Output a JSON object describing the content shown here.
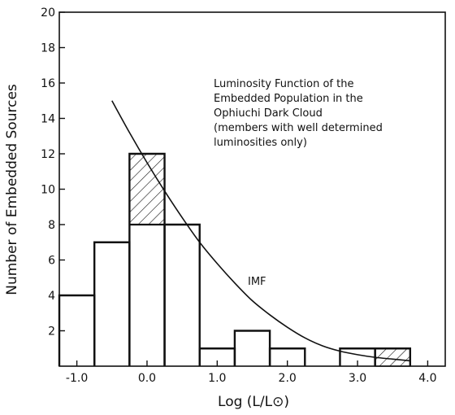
{
  "chart_data": {
    "type": "bar",
    "subtype": "histogram",
    "title": "",
    "xlabel": "Log (L/L⊙)",
    "ylabel": "Number of Embedded Sources",
    "xlim": [
      -1.25,
      4.25
    ],
    "ylim": [
      0,
      20
    ],
    "xticks": [
      -1.0,
      0.0,
      1.0,
      2.0,
      3.0,
      4.0
    ],
    "xtick_labels": [
      "-1.0",
      "0.0",
      "1.0",
      "2.0",
      "3.0",
      "4.0"
    ],
    "yticks": [
      2,
      4,
      6,
      8,
      10,
      12,
      14,
      16,
      18,
      20
    ],
    "ytick_labels": [
      "2",
      "4",
      "6",
      "8",
      "10",
      "12",
      "14",
      "16",
      "18",
      "20"
    ],
    "bin_width": 0.5,
    "bins": [
      {
        "x0": -1.25,
        "x1": -0.75,
        "count": 4,
        "hatched": 0
      },
      {
        "x0": -0.75,
        "x1": -0.25,
        "count": 7,
        "hatched": 0
      },
      {
        "x0": -0.25,
        "x1": 0.25,
        "count": 12,
        "hatched": 4
      },
      {
        "x0": 0.25,
        "x1": 0.75,
        "count": 8,
        "hatched": 0
      },
      {
        "x0": 0.75,
        "x1": 1.25,
        "count": 1,
        "hatched": 0
      },
      {
        "x0": 1.25,
        "x1": 1.75,
        "count": 2,
        "hatched": 0
      },
      {
        "x0": 1.75,
        "x1": 2.25,
        "count": 1,
        "hatched": 0
      },
      {
        "x0": 2.25,
        "x1": 2.75,
        "count": 0,
        "hatched": 0
      },
      {
        "x0": 2.75,
        "x1": 3.25,
        "count": 1,
        "hatched": 0
      },
      {
        "x0": 3.25,
        "x1": 3.75,
        "count": 1,
        "hatched": 1
      }
    ],
    "imf_curve": {
      "label": "IMF",
      "points": [
        [
          -0.5,
          15.0
        ],
        [
          -0.25,
          13.2
        ],
        [
          0.0,
          11.5
        ],
        [
          0.25,
          9.9
        ],
        [
          0.5,
          8.4
        ],
        [
          0.75,
          7.0
        ],
        [
          1.0,
          5.8
        ],
        [
          1.25,
          4.7
        ],
        [
          1.5,
          3.7
        ],
        [
          1.75,
          2.9
        ],
        [
          2.0,
          2.2
        ],
        [
          2.25,
          1.6
        ],
        [
          2.5,
          1.15
        ],
        [
          2.75,
          0.85
        ],
        [
          3.0,
          0.65
        ],
        [
          3.25,
          0.5
        ],
        [
          3.5,
          0.4
        ],
        [
          3.75,
          0.3
        ]
      ]
    },
    "annotation": [
      "Luminosity Function of the",
      "Embedded Population in the",
      "Ophiuchi Dark Cloud",
      "(members with well determined",
      "luminosities only)"
    ],
    "legend": "none",
    "grid": false
  }
}
